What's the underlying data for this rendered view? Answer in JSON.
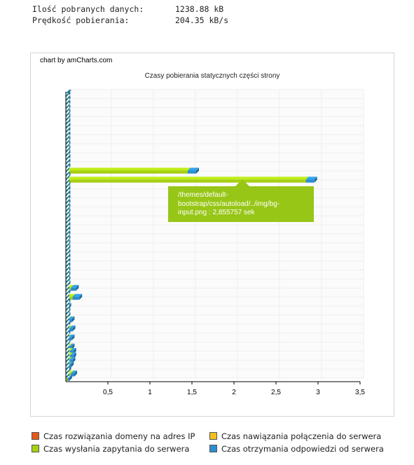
{
  "stats": {
    "downloaded_label": "Ilość pobranych danych:",
    "downloaded_value": "1238.88 kB",
    "speed_label": "Prędkość pobierania:",
    "speed_value": "204.35 kB/s"
  },
  "chart_data": {
    "type": "bar",
    "orientation": "horizontal",
    "stacked": true,
    "credit": "chart by amCharts.com",
    "title": "Czasy pobierania statycznych części strony",
    "xlabel": "",
    "ylabel": "",
    "xlim": [
      0,
      3.5
    ],
    "x_ticks": [
      "0,5",
      "1",
      "1,5",
      "2",
      "2,5",
      "3",
      "3,5"
    ],
    "x_tick_values": [
      0.5,
      1,
      1.5,
      2,
      2.5,
      3,
      3.5
    ],
    "grid": true,
    "legend_position": "bottom",
    "series": [
      {
        "name": "Czas rozwiązania domeny na adres IP",
        "color": "#e35a1a",
        "values": [
          0,
          0,
          0,
          0,
          0,
          0,
          0,
          0,
          0,
          0,
          0,
          0,
          0,
          0,
          0,
          0,
          0,
          0,
          0,
          0,
          0,
          0,
          0,
          0,
          0,
          0,
          0,
          0,
          0,
          0,
          0,
          0,
          0,
          0,
          0,
          0,
          0,
          0,
          0,
          0,
          0,
          0,
          0,
          0,
          0,
          0,
          0,
          0,
          0,
          0,
          0,
          0,
          0,
          0,
          0,
          0,
          0,
          0,
          0,
          0,
          0,
          0,
          0,
          0
        ]
      },
      {
        "name": "Czas nawiązania połączenia do serwera",
        "color": "#f5c01b",
        "values": [
          0,
          0,
          0,
          0,
          0,
          0,
          0,
          0,
          0,
          0,
          0,
          0,
          0,
          0,
          0,
          0,
          0,
          0,
          0,
          0,
          0,
          0,
          0,
          0,
          0,
          0,
          0,
          0,
          0,
          0,
          0,
          0,
          0,
          0,
          0,
          0,
          0,
          0,
          0,
          0,
          0,
          0,
          0,
          0,
          0,
          0,
          0,
          0,
          0,
          0,
          0,
          0,
          0,
          0,
          0,
          0,
          0,
          0,
          0,
          0,
          0,
          0,
          0,
          0
        ]
      },
      {
        "name": "Czas wysłania zapytania do serwera",
        "color": "#a7cf16",
        "values": [
          0,
          0,
          0,
          0,
          0,
          0,
          0,
          0,
          0,
          0,
          0,
          0,
          0,
          0,
          0,
          0,
          0,
          1.45,
          0,
          2.855757,
          0,
          0,
          0,
          0,
          0,
          0,
          0,
          0,
          0,
          0,
          0,
          0,
          0,
          0,
          0,
          0,
          0,
          0,
          0,
          0,
          0,
          0,
          0,
          0.06,
          0,
          0.08,
          0,
          0,
          0,
          0,
          0.03,
          0,
          0.04,
          0,
          0.03,
          0,
          0.04,
          0.05,
          0.05,
          0.04,
          0.03,
          0,
          0.06,
          0.02
        ]
      },
      {
        "name": "Czas otrzymania odpowiedzi od serwera",
        "color": "#2c8ed0",
        "values": [
          0.02,
          0.02,
          0.02,
          0.02,
          0.02,
          0.02,
          0.02,
          0.02,
          0.02,
          0.02,
          0.02,
          0.02,
          0.02,
          0.02,
          0.02,
          0.02,
          0.02,
          0.1,
          0.02,
          0.1,
          0.02,
          0.02,
          0.02,
          0.02,
          0.02,
          0.02,
          0.02,
          0.02,
          0.02,
          0.02,
          0.02,
          0.02,
          0.02,
          0.02,
          0.02,
          0.02,
          0.02,
          0.02,
          0.02,
          0.02,
          0.02,
          0.02,
          0.02,
          0.06,
          0.02,
          0.08,
          0.02,
          0.03,
          0.02,
          0.02,
          0.04,
          0.02,
          0.04,
          0.02,
          0.04,
          0.02,
          0.03,
          0.04,
          0.04,
          0.04,
          0.03,
          0.03,
          0.04,
          0.02
        ]
      }
    ],
    "tooltip": "/themes/default-bootstrap/css/autoload/../img/bg-input.png : 2,855757 sek"
  }
}
